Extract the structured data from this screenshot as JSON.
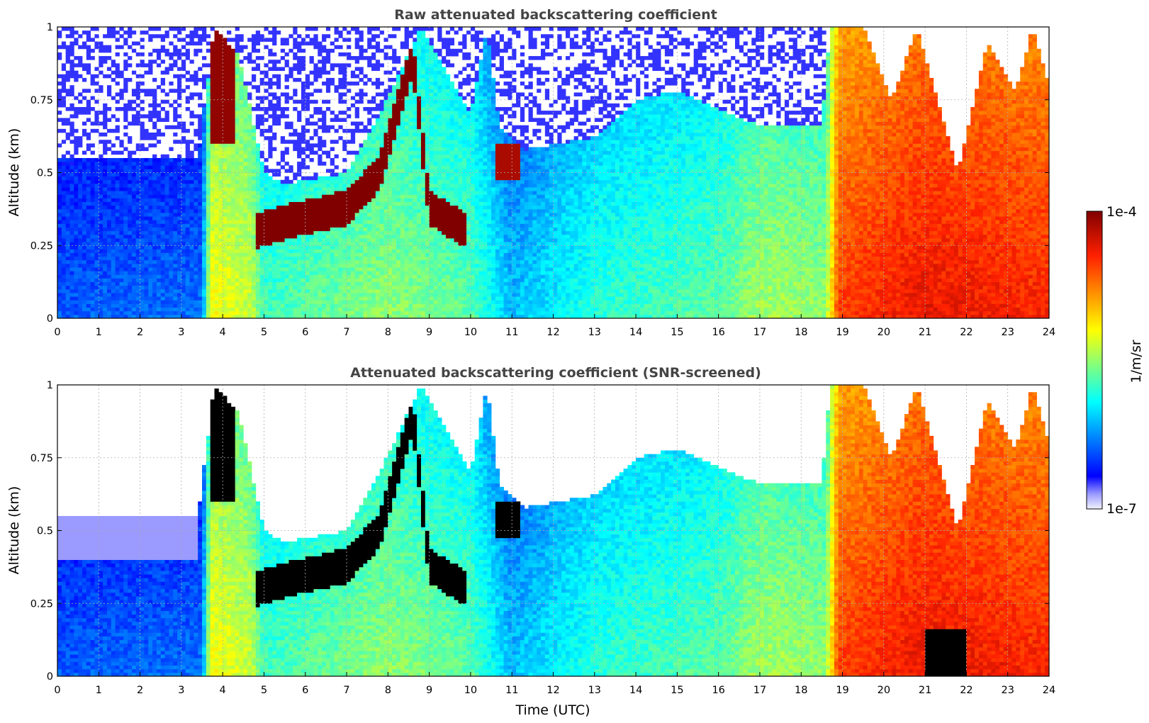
{
  "chart_data": [
    {
      "type": "heatmap",
      "title": "Raw attenuated backscattering coefficient",
      "ylabel": "Altitude (km)",
      "xlabel": "",
      "xlim": [
        0,
        24
      ],
      "ylim": [
        0,
        1
      ],
      "xticks": [
        "0",
        "1",
        "2",
        "3",
        "4",
        "5",
        "6",
        "7",
        "8",
        "9",
        "10",
        "11",
        "12",
        "13",
        "14",
        "15",
        "16",
        "17",
        "18",
        "19",
        "20",
        "21",
        "22",
        "23",
        "24"
      ],
      "yticks": [
        "0",
        "0.25",
        "0.5",
        "0.75",
        "1"
      ],
      "grid": true,
      "snr_screened": false
    },
    {
      "type": "heatmap",
      "title": "Attenuated backscattering coefficient (SNR-screened)",
      "ylabel": "Altitude (km)",
      "xlabel": "Time (UTC)",
      "xlim": [
        0,
        24
      ],
      "ylim": [
        0,
        1
      ],
      "xticks": [
        "0",
        "1",
        "2",
        "3",
        "4",
        "5",
        "6",
        "7",
        "8",
        "9",
        "10",
        "11",
        "12",
        "13",
        "14",
        "15",
        "16",
        "17",
        "18",
        "19",
        "20",
        "21",
        "22",
        "23",
        "24"
      ],
      "yticks": [
        "0",
        "0.25",
        "0.5",
        "0.75",
        "1"
      ],
      "grid": true,
      "snr_screened": true
    }
  ],
  "colorbar": {
    "label": "1/m/sr",
    "max_label": "1e-4",
    "min_label": "1e-7",
    "scale": "log",
    "range": [
      1e-07,
      0.0001
    ],
    "colormap": "jet"
  }
}
